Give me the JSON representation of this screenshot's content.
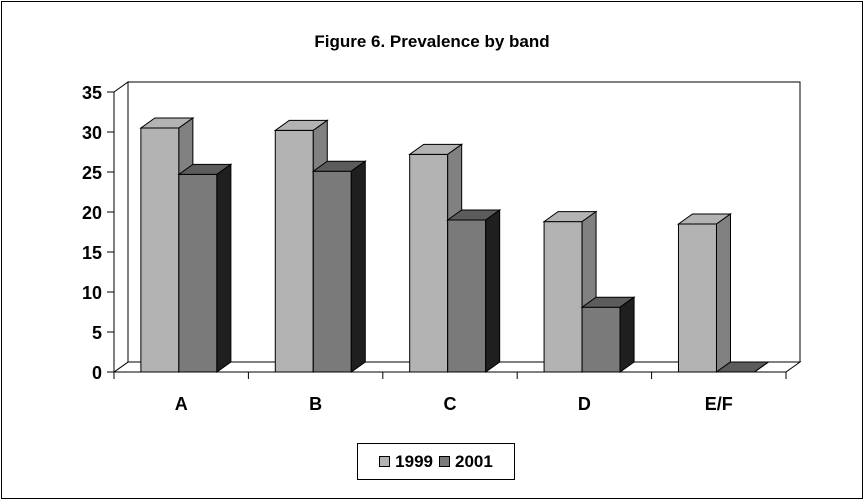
{
  "chart_data": {
    "type": "bar",
    "title": "Figure 6. Prevalence by band",
    "categories": [
      "A",
      "B",
      "C",
      "D",
      "E/F"
    ],
    "series": [
      {
        "name": "1999",
        "values": [
          30.5,
          30.2,
          27.2,
          18.8,
          18.5
        ],
        "color": "#b3b3b3"
      },
      {
        "name": "2001",
        "values": [
          24.7,
          25.1,
          19.0,
          8.1,
          0
        ],
        "color": "#7a7a7a"
      }
    ],
    "ylim": [
      0,
      35
    ],
    "yticks": [
      0,
      5,
      10,
      15,
      20,
      25,
      30,
      35
    ],
    "grid": false,
    "legend_position": "bottom",
    "style": "3d-column"
  }
}
